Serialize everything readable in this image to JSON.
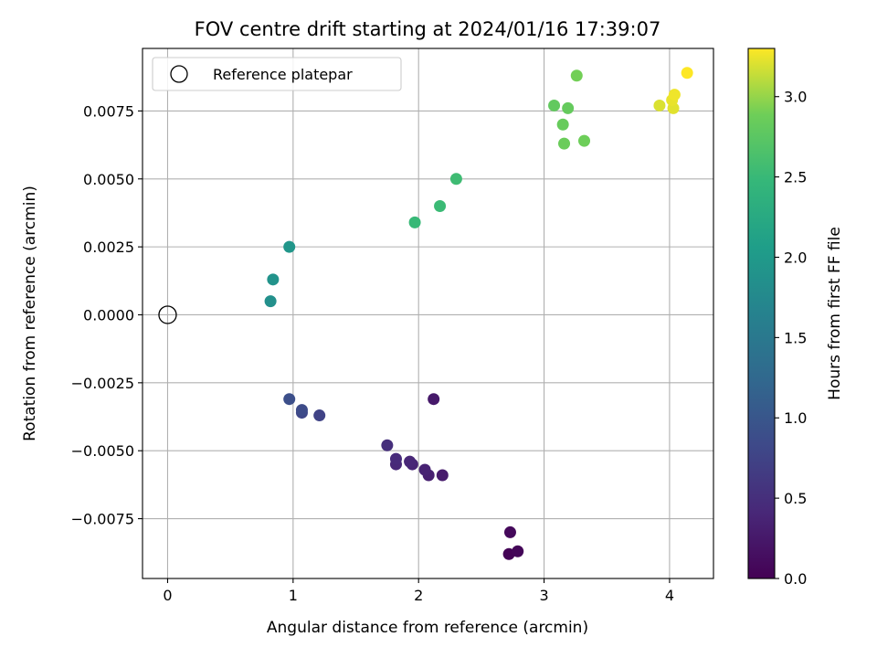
{
  "chart_data": {
    "type": "scatter",
    "title": "FOV centre drift starting at 2024/01/16 17:39:07",
    "xlabel": "Angular distance from reference (arcmin)",
    "ylabel": "Rotation from reference (arcmin)",
    "xlim": [
      -0.2,
      4.35
    ],
    "ylim": [
      -0.0097,
      0.0098
    ],
    "x_ticks": [
      0,
      1,
      2,
      3,
      4
    ],
    "x_tick_labels": [
      "0",
      "1",
      "2",
      "3",
      "4"
    ],
    "y_ticks": [
      -0.0075,
      -0.005,
      -0.0025,
      0.0,
      0.0025,
      0.005,
      0.0075
    ],
    "y_tick_labels": [
      "−0.0075",
      "−0.0050",
      "−0.0025",
      "0.0000",
      "0.0025",
      "0.0050",
      "0.0075"
    ],
    "grid": true,
    "legend": {
      "position": "top-left",
      "entries": [
        "Reference platepar"
      ]
    },
    "reference_point": {
      "x": 0.0,
      "y": 0.0,
      "marker": "hollow-circle"
    },
    "colormap": "viridis",
    "colorbar": {
      "label": "Hours from first FF file",
      "range": [
        0.0,
        3.3
      ],
      "ticks": [
        0.0,
        0.5,
        1.0,
        1.5,
        2.0,
        2.5,
        3.0
      ],
      "tick_labels": [
        "0.0",
        "0.5",
        "1.0",
        "1.5",
        "2.0",
        "2.5",
        "3.0"
      ]
    },
    "points": [
      {
        "x": 2.72,
        "y": -0.0088,
        "c": 0.02
      },
      {
        "x": 2.79,
        "y": -0.0087,
        "c": 0.05
      },
      {
        "x": 2.73,
        "y": -0.008,
        "c": 0.08
      },
      {
        "x": 2.12,
        "y": -0.0031,
        "c": 0.25
      },
      {
        "x": 2.19,
        "y": -0.0059,
        "c": 0.28
      },
      {
        "x": 2.08,
        "y": -0.0059,
        "c": 0.32
      },
      {
        "x": 2.05,
        "y": -0.0057,
        "c": 0.35
      },
      {
        "x": 1.95,
        "y": -0.0055,
        "c": 0.38
      },
      {
        "x": 1.93,
        "y": -0.0054,
        "c": 0.4
      },
      {
        "x": 1.82,
        "y": -0.0055,
        "c": 0.42
      },
      {
        "x": 1.82,
        "y": -0.0053,
        "c": 0.45
      },
      {
        "x": 1.75,
        "y": -0.0048,
        "c": 0.5
      },
      {
        "x": 1.21,
        "y": -0.0037,
        "c": 0.75
      },
      {
        "x": 1.07,
        "y": -0.0036,
        "c": 0.8
      },
      {
        "x": 1.07,
        "y": -0.0035,
        "c": 0.85
      },
      {
        "x": 0.97,
        "y": -0.0031,
        "c": 0.9
      },
      {
        "x": 0.82,
        "y": 0.0005,
        "c": 1.85
      },
      {
        "x": 0.84,
        "y": 0.0013,
        "c": 1.9
      },
      {
        "x": 0.97,
        "y": 0.0025,
        "c": 1.95
      },
      {
        "x": 1.97,
        "y": 0.0034,
        "c": 2.5
      },
      {
        "x": 2.17,
        "y": 0.004,
        "c": 2.52
      },
      {
        "x": 2.3,
        "y": 0.005,
        "c": 2.55
      },
      {
        "x": 3.08,
        "y": 0.0077,
        "c": 2.8
      },
      {
        "x": 3.19,
        "y": 0.0076,
        "c": 2.82
      },
      {
        "x": 3.15,
        "y": 0.007,
        "c": 2.84
      },
      {
        "x": 3.16,
        "y": 0.0063,
        "c": 2.86
      },
      {
        "x": 3.32,
        "y": 0.0064,
        "c": 2.88
      },
      {
        "x": 3.26,
        "y": 0.0088,
        "c": 2.9
      },
      {
        "x": 3.92,
        "y": 0.0077,
        "c": 3.2
      },
      {
        "x": 4.03,
        "y": 0.0076,
        "c": 3.22
      },
      {
        "x": 4.02,
        "y": 0.0079,
        "c": 3.24
      },
      {
        "x": 4.04,
        "y": 0.0081,
        "c": 3.26
      },
      {
        "x": 4.14,
        "y": 0.0089,
        "c": 3.3
      }
    ]
  }
}
